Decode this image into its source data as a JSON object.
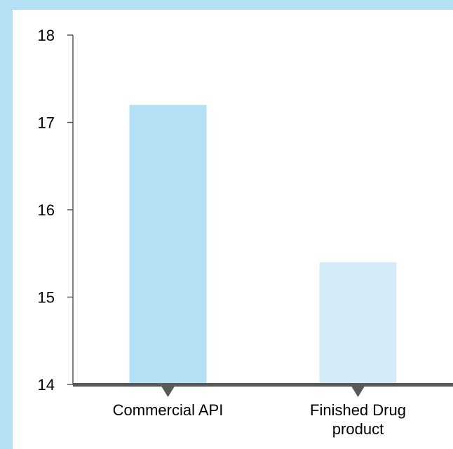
{
  "chart_data": {
    "type": "bar",
    "categories": [
      "Commercial API",
      "Finished Drug product"
    ],
    "category_lines": [
      [
        "Commercial API"
      ],
      [
        "Finished Drug",
        "product"
      ]
    ],
    "values": [
      17.2,
      15.4
    ],
    "ylim": [
      14,
      18
    ],
    "yticks": [
      "14",
      "15",
      "16",
      "17",
      "18"
    ],
    "title": "",
    "xlabel": "",
    "ylabel": "",
    "grid": false,
    "legend": "none"
  },
  "colors": {
    "frame": "#b3e0f4",
    "bars": [
      "#b3e0f4",
      "#d4ecf8"
    ],
    "axis": "#595959",
    "marker": "#595959"
  }
}
